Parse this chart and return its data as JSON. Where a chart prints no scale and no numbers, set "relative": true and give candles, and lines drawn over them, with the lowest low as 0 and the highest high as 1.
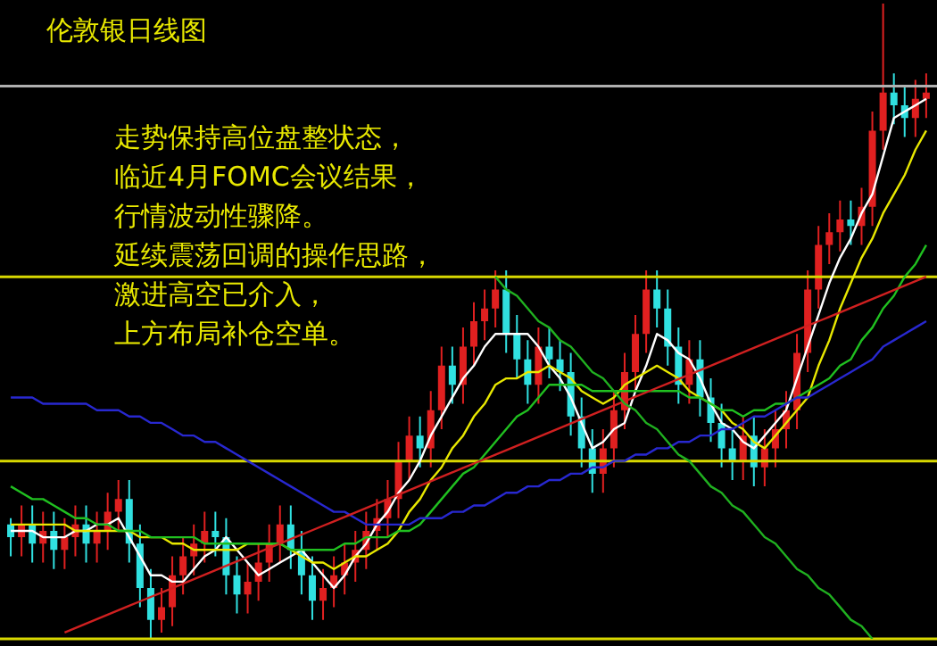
{
  "chart_data": {
    "type": "candlestick",
    "title": "伦敦银日线图",
    "annotations": [
      "走势保持高位盘整状态，",
      "临近4月FOMC会议结果，",
      "行情波动性骤降。",
      "延续震荡回调的操作思路，",
      "激进高空已介入，",
      "上方布局补仓空单。"
    ],
    "relative": true,
    "tick_labels": false,
    "grid": false,
    "legend": false,
    "colors": [
      "#30e0e0",
      "#e02020",
      "#30e0e0",
      "#e02020",
      "#30e0e0",
      "#e02020",
      "#e02020",
      "#30e0e0",
      "#e02020",
      "#e02020",
      "#e02020",
      "#30e0e0",
      "#30e0e0",
      "#30e0e0",
      "#e02020",
      "#e02020",
      "#e02020",
      "#e02020",
      "#e02020",
      "#30e0e0",
      "#30e0e0",
      "#30e0e0",
      "#e02020",
      "#e02020",
      "#e02020",
      "#e02020",
      "#30e0e0",
      "#30e0e0",
      "#30e0e0",
      "#e02020",
      "#e02020",
      "#e02020",
      "#e02020",
      "#e02020",
      "#e02020",
      "#e02020",
      "#e02020",
      "#e02020",
      "#30e0e0",
      "#e02020",
      "#e02020",
      "#30e0e0",
      "#e02020",
      "#e02020",
      "#e02020",
      "#e02020",
      "#30e0e0",
      "#30e0e0",
      "#30e0e0",
      "#e02020",
      "#30e0e0",
      "#30e0e0",
      "#30e0e0",
      "#30e0e0",
      "#30e0e0",
      "#e02020",
      "#e02020",
      "#e02020",
      "#e02020",
      "#e02020",
      "#30e0e0",
      "#30e0e0",
      "#30e0e0",
      "#e02020",
      "#30e0e0",
      "#30e0e0",
      "#30e0e0",
      "#30e0e0",
      "#e02020",
      "#30e0e0",
      "#e02020",
      "#e02020",
      "#e02020",
      "#e02020",
      "#e02020",
      "#e02020",
      "#e02020",
      "#e02020",
      "#30e0e0",
      "#e02020",
      "#e02020",
      "#e02020",
      "#30e0e0",
      "#30e0e0",
      "#e02020",
      "#e02020"
    ],
    "categories": [
      null,
      null,
      null,
      null,
      null,
      null,
      null,
      null,
      null,
      null,
      null,
      null,
      null,
      null,
      null,
      null,
      null,
      null,
      null,
      null,
      null,
      null,
      null,
      null,
      null,
      null,
      null,
      null,
      null,
      null,
      null,
      null,
      null,
      null,
      null,
      null,
      null,
      null,
      null,
      null,
      null,
      null,
      null,
      null,
      null,
      null,
      null,
      null,
      null,
      null,
      null,
      null,
      null,
      null,
      null,
      null,
      null,
      null,
      null,
      null,
      null,
      null,
      null,
      null,
      null,
      null,
      null,
      null,
      null,
      null,
      null,
      null,
      null,
      null,
      null,
      null,
      null,
      null,
      null,
      null,
      null,
      null,
      null,
      null,
      null,
      null
    ],
    "ohlc": [
      [
        0.18,
        0.19,
        0.13,
        0.16
      ],
      [
        0.16,
        0.21,
        0.13,
        0.18
      ],
      [
        0.18,
        0.21,
        0.12,
        0.15
      ],
      [
        0.15,
        0.2,
        0.12,
        0.17
      ],
      [
        0.17,
        0.2,
        0.11,
        0.14
      ],
      [
        0.14,
        0.19,
        0.11,
        0.16
      ],
      [
        0.16,
        0.21,
        0.13,
        0.18
      ],
      [
        0.18,
        0.21,
        0.12,
        0.15
      ],
      [
        0.15,
        0.2,
        0.12,
        0.17
      ],
      [
        0.17,
        0.23,
        0.14,
        0.2
      ],
      [
        0.2,
        0.25,
        0.17,
        0.22
      ],
      [
        0.22,
        0.25,
        0.12,
        0.15
      ],
      [
        0.15,
        0.18,
        0.05,
        0.08
      ],
      [
        0.08,
        0.11,
        0,
        0.03
      ],
      [
        0.03,
        0.08,
        0.01,
        0.05
      ],
      [
        0.05,
        0.13,
        0.02,
        0.1
      ],
      [
        0.1,
        0.16,
        0.07,
        0.13
      ],
      [
        0.13,
        0.18,
        0.1,
        0.15
      ],
      [
        0.15,
        0.2,
        0.12,
        0.17
      ],
      [
        0.17,
        0.2,
        0.13,
        0.16
      ],
      [
        0.16,
        0.19,
        0.07,
        0.1
      ],
      [
        0.1,
        0.13,
        0.04,
        0.07
      ],
      [
        0.07,
        0.12,
        0.04,
        0.09
      ],
      [
        0.09,
        0.15,
        0.06,
        0.12
      ],
      [
        0.12,
        0.18,
        0.09,
        0.15
      ],
      [
        0.15,
        0.21,
        0.12,
        0.18
      ],
      [
        0.18,
        0.21,
        0.11,
        0.14
      ],
      [
        0.14,
        0.17,
        0.07,
        0.1
      ],
      [
        0.1,
        0.13,
        0.03,
        0.06
      ],
      [
        0.06,
        0.11,
        0.03,
        0.08
      ],
      [
        0.08,
        0.13,
        0.05,
        0.1
      ],
      [
        0.1,
        0.15,
        0.07,
        0.12
      ],
      [
        0.12,
        0.17,
        0.09,
        0.14
      ],
      [
        0.14,
        0.2,
        0.11,
        0.17
      ],
      [
        0.17,
        0.22,
        0.14,
        0.19
      ],
      [
        0.19,
        0.25,
        0.16,
        0.22
      ],
      [
        0.22,
        0.31,
        0.19,
        0.28
      ],
      [
        0.28,
        0.35,
        0.25,
        0.32
      ],
      [
        0.32,
        0.35,
        0.27,
        0.3
      ],
      [
        0.3,
        0.39,
        0.27,
        0.36
      ],
      [
        0.36,
        0.46,
        0.33,
        0.43
      ],
      [
        0.43,
        0.46,
        0.37,
        0.4
      ],
      [
        0.4,
        0.49,
        0.37,
        0.46
      ],
      [
        0.46,
        0.53,
        0.43,
        0.5
      ],
      [
        0.5,
        0.55,
        0.47,
        0.52
      ],
      [
        0.52,
        0.58,
        0.49,
        0.55
      ],
      [
        0.55,
        0.58,
        0.45,
        0.48
      ],
      [
        0.48,
        0.51,
        0.41,
        0.44
      ],
      [
        0.44,
        0.47,
        0.37,
        0.4
      ],
      [
        0.4,
        0.49,
        0.37,
        0.46
      ],
      [
        0.46,
        0.49,
        0.41,
        0.44
      ],
      [
        0.44,
        0.47,
        0.39,
        0.42
      ],
      [
        0.42,
        0.45,
        0.32,
        0.35
      ],
      [
        0.35,
        0.38,
        0.27,
        0.3
      ],
      [
        0.3,
        0.33,
        0.23,
        0.26
      ],
      [
        0.26,
        0.33,
        0.23,
        0.3
      ],
      [
        0.3,
        0.39,
        0.27,
        0.36
      ],
      [
        0.36,
        0.45,
        0.33,
        0.42
      ],
      [
        0.42,
        0.51,
        0.39,
        0.48
      ],
      [
        0.48,
        0.58,
        0.45,
        0.55
      ],
      [
        0.55,
        0.58,
        0.49,
        0.52
      ],
      [
        0.52,
        0.55,
        0.43,
        0.46
      ],
      [
        0.46,
        0.49,
        0.37,
        0.4
      ],
      [
        0.4,
        0.47,
        0.37,
        0.44
      ],
      [
        0.44,
        0.47,
        0.35,
        0.38
      ],
      [
        0.38,
        0.41,
        0.31,
        0.34
      ],
      [
        0.34,
        0.37,
        0.27,
        0.3
      ],
      [
        0.3,
        0.33,
        0.25,
        0.28
      ],
      [
        0.28,
        0.35,
        0.25,
        0.32
      ],
      [
        0.32,
        0.35,
        0.24,
        0.27
      ],
      [
        0.27,
        0.33,
        0.24,
        0.3
      ],
      [
        0.3,
        0.36,
        0.27,
        0.33
      ],
      [
        0.33,
        0.39,
        0.3,
        0.36
      ],
      [
        0.36,
        0.48,
        0.33,
        0.45
      ],
      [
        0.45,
        0.58,
        0.42,
        0.55
      ],
      [
        0.55,
        0.65,
        0.52,
        0.62
      ],
      [
        0.62,
        0.67,
        0.59,
        0.64
      ],
      [
        0.64,
        0.69,
        0.61,
        0.66
      ],
      [
        0.66,
        0.69,
        0.62,
        0.65
      ],
      [
        0.65,
        0.71,
        0.62,
        0.68
      ],
      [
        0.68,
        0.83,
        0.65,
        0.8
      ],
      [
        0.8,
        1,
        0.77,
        0.86
      ],
      [
        0.86,
        0.89,
        0.81,
        0.84
      ],
      [
        0.84,
        0.87,
        0.79,
        0.82
      ],
      [
        0.82,
        0.88,
        0.79,
        0.85
      ],
      [
        0.85,
        0.89,
        0.82,
        0.86
      ]
    ],
    "series": [
      {
        "type": "line",
        "color": "#ffffff",
        "values": [
          0.17,
          0.17,
          0.17,
          0.16,
          0.16,
          0.16,
          0.17,
          0.17,
          0.18,
          0.18,
          0.19,
          0.16,
          0.13,
          0.1,
          0.1,
          0.09,
          0.09,
          0.11,
          0.13,
          0.14,
          0.16,
          0.14,
          0.12,
          0.1,
          0.11,
          0.12,
          0.13,
          0.14,
          0.12,
          0.1,
          0.08,
          0.1,
          0.13,
          0.15,
          0.18,
          0.2,
          0.23,
          0.25,
          0.28,
          0.32,
          0.35,
          0.38,
          0.41,
          0.43,
          0.46,
          0.48,
          0.48,
          0.48,
          0.48,
          0.46,
          0.43,
          0.41,
          0.38,
          0.34,
          0.3,
          0.31,
          0.33,
          0.34,
          0.39,
          0.43,
          0.48,
          0.47,
          0.45,
          0.44,
          0.41,
          0.37,
          0.34,
          0.33,
          0.31,
          0.3,
          0.32,
          0.34,
          0.36,
          0.41,
          0.46,
          0.51,
          0.56,
          0.6,
          0.63,
          0.67,
          0.7,
          0.76,
          0.82,
          0.83,
          0.84,
          0.85
        ]
      },
      {
        "type": "line",
        "color": "#e8e800",
        "values": [
          0.18,
          0.18,
          0.18,
          0.18,
          0.18,
          0.18,
          0.17,
          0.17,
          0.17,
          0.17,
          0.17,
          0.17,
          0.16,
          0.16,
          0.16,
          0.15,
          0.15,
          0.14,
          0.14,
          0.14,
          0.14,
          0.14,
          0.15,
          0.15,
          0.15,
          0.15,
          0.14,
          0.13,
          0.12,
          0.12,
          0.11,
          0.12,
          0.13,
          0.13,
          0.14,
          0.15,
          0.17,
          0.2,
          0.22,
          0.25,
          0.27,
          0.3,
          0.32,
          0.35,
          0.37,
          0.4,
          0.41,
          0.41,
          0.42,
          0.42,
          0.43,
          0.42,
          0.41,
          0.39,
          0.38,
          0.37,
          0.38,
          0.4,
          0.41,
          0.42,
          0.43,
          0.42,
          0.41,
          0.39,
          0.38,
          0.37,
          0.36,
          0.34,
          0.33,
          0.31,
          0.3,
          0.32,
          0.34,
          0.36,
          0.38,
          0.43,
          0.47,
          0.52,
          0.56,
          0.6,
          0.63,
          0.67,
          0.7,
          0.73,
          0.77,
          0.8
        ]
      },
      {
        "type": "line",
        "color": "#20c020",
        "values": [
          0.24,
          0.23,
          0.22,
          0.22,
          0.21,
          0.2,
          0.19,
          0.19,
          0.18,
          0.18,
          0.17,
          0.17,
          0.17,
          0.16,
          0.16,
          0.16,
          0.16,
          0.16,
          0.15,
          0.15,
          0.15,
          0.15,
          0.15,
          0.15,
          0.15,
          0.15,
          0.14,
          0.14,
          0.14,
          0.14,
          0.14,
          0.15,
          0.15,
          0.16,
          0.16,
          0.16,
          0.17,
          0.17,
          0.18,
          0.2,
          0.22,
          0.24,
          0.26,
          0.27,
          0.29,
          0.31,
          0.33,
          0.35,
          0.36,
          0.38,
          0.4,
          0.4,
          0.4,
          0.4,
          0.39,
          0.39,
          0.39,
          0.39,
          0.39,
          0.39,
          0.39,
          0.39,
          0.39,
          0.38,
          0.38,
          0.37,
          0.36,
          0.36,
          0.35,
          0.36,
          0.36,
          0.37,
          0.37,
          0.38,
          0.39,
          0.4,
          0.41,
          0.43,
          0.44,
          0.47,
          0.49,
          0.52,
          0.54,
          0.57,
          0.59,
          0.62
        ]
      },
      {
        "type": "line",
        "color": "#2828d0",
        "values": [
          0.38,
          0.38,
          0.38,
          0.37,
          0.37,
          0.37,
          0.37,
          0.37,
          0.36,
          0.36,
          0.36,
          0.35,
          0.35,
          0.34,
          0.34,
          0.33,
          0.32,
          0.32,
          0.31,
          0.31,
          0.3,
          0.29,
          0.28,
          0.27,
          0.26,
          0.25,
          0.24,
          0.23,
          0.22,
          0.21,
          0.2,
          0.2,
          0.19,
          0.18,
          0.18,
          0.18,
          0.18,
          0.18,
          0.19,
          0.19,
          0.19,
          0.2,
          0.2,
          0.21,
          0.21,
          0.22,
          0.23,
          0.23,
          0.24,
          0.24,
          0.25,
          0.25,
          0.26,
          0.26,
          0.27,
          0.27,
          0.28,
          0.28,
          0.29,
          0.29,
          0.3,
          0.3,
          0.31,
          0.31,
          0.32,
          0.32,
          0.33,
          0.33,
          0.34,
          0.35,
          0.35,
          0.36,
          0.37,
          0.38,
          0.38,
          0.39,
          0.4,
          0.41,
          0.42,
          0.43,
          0.44,
          0.46,
          0.47,
          0.48,
          0.49,
          0.5
        ]
      },
      {
        "type": "line",
        "color": "#d02020",
        "values": [
          null,
          null,
          null,
          null,
          null,
          0.01,
          0.017,
          0.024,
          0.031,
          0.038,
          0.045,
          0.052,
          0.059,
          0.066,
          0.073,
          0.08,
          0.087,
          0.094,
          0.101,
          0.108,
          0.115,
          0.122,
          0.129,
          0.136,
          0.143,
          0.15,
          0.157,
          0.164,
          0.171,
          0.178,
          0.185,
          0.192,
          0.199,
          0.206,
          0.213,
          0.22,
          0.227,
          0.234,
          0.241,
          0.248,
          0.255,
          0.262,
          0.269,
          0.276,
          0.283,
          0.29,
          0.297,
          0.304,
          0.311,
          0.318,
          0.325,
          0.332,
          0.339,
          0.346,
          0.353,
          0.36,
          0.367,
          0.374,
          0.381,
          0.388,
          0.395,
          0.402,
          0.409,
          0.416,
          0.423,
          0.43,
          0.437,
          0.444,
          0.451,
          0.458,
          0.465,
          0.472,
          0.479,
          0.486,
          0.493,
          0.5,
          0.507,
          0.514,
          0.521,
          0.528,
          0.535,
          0.542,
          0.549,
          0.556,
          0.563,
          0.57
        ]
      },
      {
        "type": "line",
        "color": "#20b020",
        "values": [
          null,
          null,
          null,
          null,
          null,
          null,
          null,
          null,
          null,
          null,
          null,
          null,
          null,
          null,
          null,
          null,
          null,
          null,
          null,
          null,
          null,
          null,
          null,
          null,
          null,
          null,
          null,
          null,
          null,
          null,
          null,
          null,
          null,
          null,
          null,
          null,
          null,
          null,
          null,
          null,
          null,
          null,
          null,
          null,
          null,
          0.57,
          0.55,
          0.54,
          0.52,
          0.5,
          0.49,
          0.47,
          0.46,
          0.44,
          0.42,
          0.41,
          0.39,
          0.37,
          0.36,
          0.34,
          0.33,
          0.31,
          0.29,
          0.28,
          0.26,
          0.24,
          0.23,
          0.21,
          0.2,
          0.18,
          0.16,
          0.15,
          0.13,
          0.11,
          0.1,
          0.08,
          0.07,
          0.05,
          0.03,
          0.02,
          0.0,
          null,
          null,
          null,
          null,
          null
        ]
      }
    ],
    "ref_lines": [
      {
        "axis": "y",
        "value": 0.87,
        "color": "#b0b0b0"
      },
      {
        "axis": "y",
        "value": 0.57,
        "color": "#d8d800"
      },
      {
        "axis": "y",
        "value": 0.28,
        "color": "#d8d800"
      },
      {
        "axis": "y",
        "value": 0,
        "color": "#d8d800"
      }
    ]
  }
}
